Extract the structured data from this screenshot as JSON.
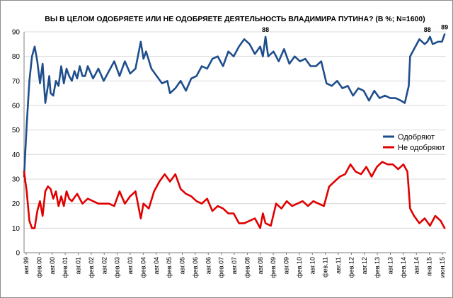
{
  "chart_data": {
    "type": "line",
    "title": "ВЫ В ЦЕЛОМ ОДОБРЯЕТЕ ИЛИ НЕ ОДОБРЯЕТЕ ДЕЯТЕЛЬНОСТЬ ВЛАДИМИРА ПУТИНА? (В %; N=1600)",
    "ylim": [
      0,
      90
    ],
    "yticks": [
      "0",
      "10",
      "20",
      "30",
      "40",
      "50",
      "60",
      "70",
      "80",
      "90"
    ],
    "grid": true,
    "legend": "right",
    "x_tick_labels": [
      "авг.99",
      "фев.00",
      "авг.00",
      "фев.01",
      "авг.01",
      "фев.02",
      "авг.02",
      "фев.03",
      "авг.03",
      "фев.04",
      "авг.04",
      "фев.05",
      "авг.05",
      "фев.06",
      "авг.06",
      "фев.07",
      "авг.07",
      "фев.08",
      "авг.08",
      "фев.09",
      "авг.09",
      "фев.10",
      "авг.10",
      "фев.11",
      "авг.11",
      "фев.12",
      "авг.12",
      "фев.13",
      "авг.13",
      "фев.14",
      "авг.14",
      "янв.15",
      "июн.15"
    ],
    "annotations": [
      {
        "text": "88",
        "x": 2008.7,
        "y": 88
      },
      {
        "text": "88",
        "x": 2014.8,
        "y": 88
      },
      {
        "text": "89",
        "x": 2015.45,
        "y": 89
      }
    ],
    "series": [
      {
        "name": "Одобряют",
        "color": "#1f4e8c",
        "x": [
          1999.6,
          1999.7,
          1999.8,
          1999.9,
          2000.0,
          2000.1,
          2000.2,
          2000.3,
          2000.4,
          2000.5,
          2000.55,
          2000.6,
          2000.7,
          2000.8,
          2000.9,
          2001.0,
          2001.1,
          2001.2,
          2001.3,
          2001.4,
          2001.5,
          2001.6,
          2001.7,
          2001.8,
          2001.9,
          2002.0,
          2002.2,
          2002.4,
          2002.6,
          2002.8,
          2003.0,
          2003.2,
          2003.4,
          2003.6,
          2003.8,
          2004.0,
          2004.1,
          2004.2,
          2004.4,
          2004.6,
          2004.8,
          2005.0,
          2005.1,
          2005.3,
          2005.5,
          2005.7,
          2005.9,
          2006.1,
          2006.3,
          2006.5,
          2006.7,
          2006.9,
          2007.1,
          2007.3,
          2007.5,
          2007.7,
          2007.9,
          2008.1,
          2008.3,
          2008.5,
          2008.6,
          2008.7,
          2008.8,
          2009.0,
          2009.2,
          2009.4,
          2009.6,
          2009.8,
          2010.0,
          2010.2,
          2010.4,
          2010.6,
          2010.8,
          2011.0,
          2011.2,
          2011.4,
          2011.6,
          2011.8,
          2012.0,
          2012.2,
          2012.4,
          2012.6,
          2012.8,
          2013.0,
          2013.2,
          2013.4,
          2013.6,
          2013.8,
          2013.95,
          2014.1,
          2014.15,
          2014.3,
          2014.5,
          2014.7,
          2014.8,
          2014.9,
          2015.0,
          2015.2,
          2015.35,
          2015.45
        ],
        "values": [
          31,
          52,
          70,
          80,
          84,
          78,
          69,
          77,
          61,
          68,
          72,
          65,
          64,
          70,
          68,
          76,
          69,
          75,
          72,
          70,
          74,
          71,
          76,
          72,
          72,
          76,
          71,
          75,
          70,
          74,
          78,
          72,
          78,
          73,
          75,
          86,
          79,
          82,
          75,
          72,
          69,
          70,
          65,
          67,
          70,
          66,
          71,
          72,
          76,
          75,
          79,
          80,
          76,
          82,
          80,
          84,
          87,
          85,
          81,
          84,
          80,
          88,
          80,
          82,
          78,
          83,
          77,
          80,
          78,
          79,
          76,
          76,
          78,
          69,
          68,
          70,
          67,
          68,
          64,
          67,
          66,
          62,
          66,
          63,
          64,
          63,
          63,
          62,
          61,
          68,
          80,
          83,
          87,
          85,
          86,
          88,
          85,
          86,
          86,
          89
        ]
      },
      {
        "name": "Не одобряют",
        "color": "#e00000",
        "x": [
          1999.6,
          1999.7,
          1999.8,
          1999.9,
          2000.0,
          2000.1,
          2000.2,
          2000.3,
          2000.4,
          2000.5,
          2000.6,
          2000.7,
          2000.8,
          2000.9,
          2001.0,
          2001.1,
          2001.2,
          2001.3,
          2001.4,
          2001.6,
          2001.8,
          2002.0,
          2002.2,
          2002.4,
          2002.6,
          2002.8,
          2003.0,
          2003.2,
          2003.4,
          2003.6,
          2003.8,
          2004.0,
          2004.1,
          2004.3,
          2004.5,
          2004.7,
          2004.9,
          2005.1,
          2005.3,
          2005.5,
          2005.7,
          2005.9,
          2006.1,
          2006.3,
          2006.5,
          2006.7,
          2006.9,
          2007.1,
          2007.3,
          2007.5,
          2007.7,
          2007.9,
          2008.1,
          2008.3,
          2008.5,
          2008.6,
          2008.7,
          2008.9,
          2009.1,
          2009.3,
          2009.5,
          2009.7,
          2009.9,
          2010.1,
          2010.3,
          2010.5,
          2010.7,
          2010.9,
          2011.1,
          2011.3,
          2011.5,
          2011.7,
          2011.9,
          2012.1,
          2012.3,
          2012.5,
          2012.7,
          2012.9,
          2013.1,
          2013.3,
          2013.5,
          2013.7,
          2013.9,
          2014.05,
          2014.15,
          2014.3,
          2014.5,
          2014.7,
          2014.9,
          2015.1,
          2015.3,
          2015.45
        ],
        "values": [
          33,
          25,
          13,
          10,
          10,
          17,
          21,
          15,
          25,
          27,
          26,
          22,
          25,
          19,
          23,
          19,
          25,
          22,
          21,
          24,
          20,
          22,
          21,
          20,
          20,
          20,
          19,
          25,
          20,
          23,
          25,
          14,
          20,
          18,
          25,
          29,
          32,
          29,
          32,
          26,
          24,
          23,
          21,
          20,
          22,
          17,
          19,
          18,
          16,
          16,
          12,
          12,
          13,
          14,
          10,
          16,
          12,
          11,
          20,
          18,
          21,
          19,
          20,
          21,
          19,
          21,
          20,
          19,
          27,
          29,
          31,
          32,
          36,
          33,
          32,
          35,
          31,
          35,
          37,
          36,
          36,
          34,
          36,
          33,
          18,
          15,
          12,
          14,
          11,
          15,
          13,
          10
        ]
      }
    ]
  }
}
